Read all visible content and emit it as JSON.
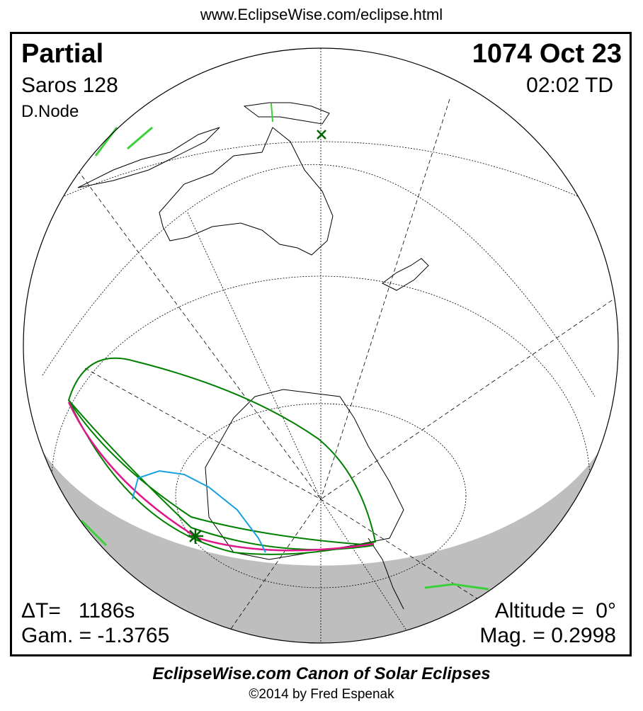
{
  "header": {
    "url": "www.EclipseWise.com/eclipse.html"
  },
  "eclipse": {
    "type": "Partial",
    "date": "1074 Oct 23",
    "saros": "Saros 128",
    "time": "02:02 TD",
    "node": "D.Node",
    "delta_t": "ΔT=   1186s",
    "gamma": "Gam. = -1.3765",
    "altitude": "Altitude =  0°",
    "magnitude": "Mag. = 0.2998"
  },
  "footer": {
    "canon": "EclipseWise.com Canon of Solar Eclipses",
    "copyright": "©2014 by Fred Espenak"
  },
  "colors": {
    "night": "#bebebe",
    "path_limit": "#008000",
    "max_line": "#e0168a",
    "sunrise_line": "#1aa0e0",
    "land_highlight": "#40e040"
  }
}
